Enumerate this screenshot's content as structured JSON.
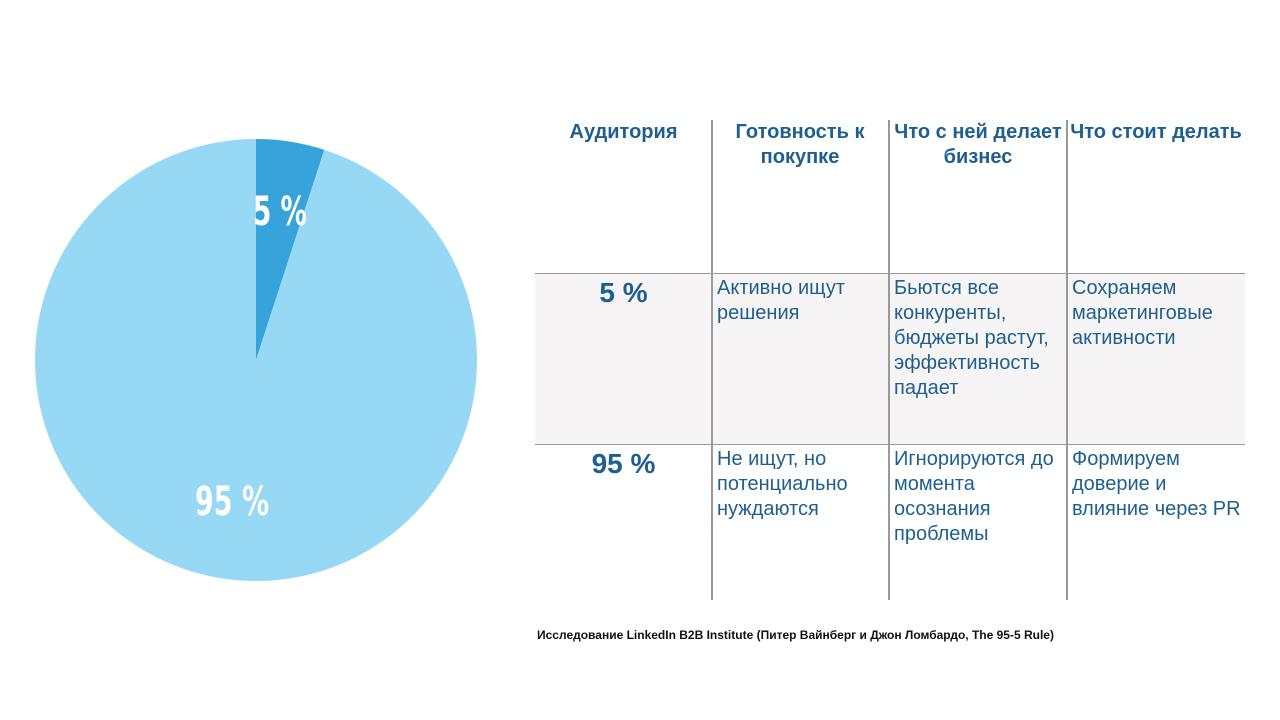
{
  "chart_data": {
    "type": "pie",
    "slices": [
      {
        "label": "5 %",
        "value": 5,
        "color": "#36a3da"
      },
      {
        "label": "95 %",
        "value": 95,
        "color": "#97d8f5"
      }
    ]
  },
  "table": {
    "headers": [
      "Аудитория",
      "Готовность к покупке",
      "Что с ней делает бизнес",
      "Что стоит делать"
    ],
    "rows": [
      [
        "5 %",
        "Активно ищут решения",
        "Бьются все конкуренты, бюджеты растут, эффективность падает",
        "Сохраняем маркетинговые активности"
      ],
      [
        "95 %",
        "Не ищут, но потенциально нуждаются",
        "Игнорируются до момента осознания проблемы",
        "Формируем доверие и влияние через PR"
      ]
    ]
  },
  "source": "Исследование LinkedIn B2B Institute (Питер Вайнберг и Джон Ломбардо, The 95-5 Rule)"
}
